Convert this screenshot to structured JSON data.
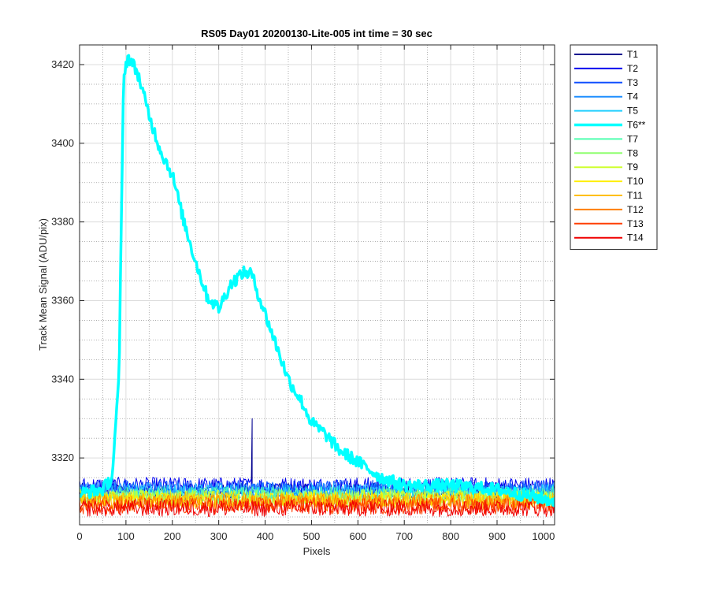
{
  "chart_data": {
    "type": "line",
    "title": "RS05 Day01 20200130-Lite-005 int time = 30 sec",
    "xlabel": "Pixels",
    "ylabel": "Track Mean Signal (ADU/pix)",
    "xlim": [
      0,
      1024
    ],
    "ylim": [
      3303,
      3425
    ],
    "xticks": [
      0,
      100,
      200,
      300,
      400,
      500,
      600,
      700,
      800,
      900,
      1000
    ],
    "yticks": [
      3320,
      3340,
      3360,
      3380,
      3400,
      3420
    ],
    "grid": true,
    "minor_grid": true,
    "legend_position": "outside-top-right",
    "highlight_series": "T6**",
    "series": [
      {
        "name": "T1",
        "color": "#00008f",
        "base": 3311.5,
        "spike": {
          "x": 372,
          "y": 3330
        }
      },
      {
        "name": "T2",
        "color": "#0000ef",
        "base": 3313.0
      },
      {
        "name": "T3",
        "color": "#0f4fff",
        "base": 3312.3
      },
      {
        "name": "T4",
        "color": "#1f8fff",
        "base": 3311.8
      },
      {
        "name": "T5",
        "color": "#20cfff",
        "base": 3311.2
      },
      {
        "name": "T6**",
        "color": "#00ffff",
        "profile": [
          [
            0,
            3311
          ],
          [
            50,
            3312
          ],
          [
            70,
            3315
          ],
          [
            85,
            3340
          ],
          [
            95,
            3418
          ],
          [
            105,
            3422
          ],
          [
            125,
            3418
          ],
          [
            150,
            3407
          ],
          [
            175,
            3398
          ],
          [
            200,
            3392
          ],
          [
            225,
            3380
          ],
          [
            250,
            3370
          ],
          [
            275,
            3361
          ],
          [
            300,
            3358
          ],
          [
            325,
            3364
          ],
          [
            350,
            3367
          ],
          [
            370,
            3367
          ],
          [
            390,
            3360
          ],
          [
            420,
            3350
          ],
          [
            450,
            3340
          ],
          [
            480,
            3334
          ],
          [
            500,
            3329
          ],
          [
            530,
            3326
          ],
          [
            560,
            3322
          ],
          [
            600,
            3319
          ],
          [
            650,
            3315
          ],
          [
            700,
            3313
          ],
          [
            750,
            3313
          ],
          [
            800,
            3313
          ],
          [
            900,
            3312
          ],
          [
            1024,
            3309
          ]
        ]
      },
      {
        "name": "T7",
        "color": "#4fffaf",
        "base": 3310.6
      },
      {
        "name": "T8",
        "color": "#8fff6f",
        "base": 3310.0
      },
      {
        "name": "T9",
        "color": "#cfff30",
        "base": 3309.8
      },
      {
        "name": "T10",
        "color": "#ffef00",
        "base": 3309.5
      },
      {
        "name": "T11",
        "color": "#ffbf00",
        "base": 3309.2
      },
      {
        "name": "T12",
        "color": "#ff7f00",
        "base": 3308.6
      },
      {
        "name": "T13",
        "color": "#ff3f00",
        "base": 3307.8
      },
      {
        "name": "T14",
        "color": "#ef0000",
        "base": 3307.2
      }
    ]
  }
}
